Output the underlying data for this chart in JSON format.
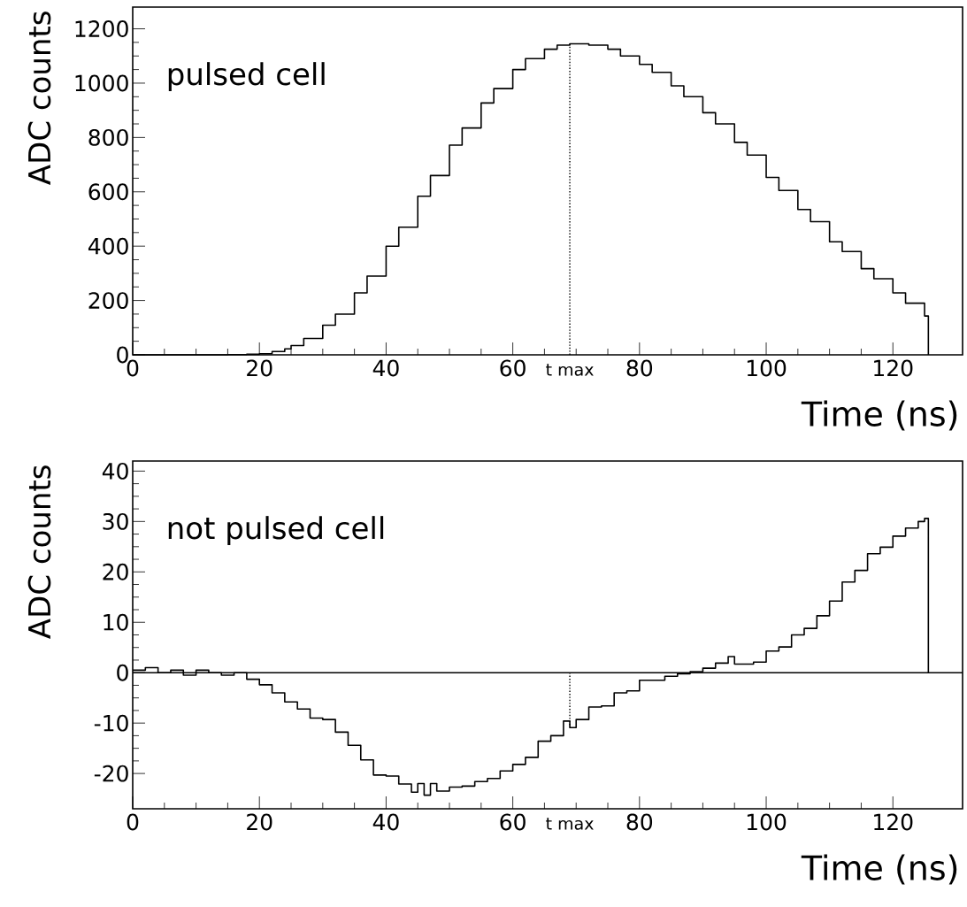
{
  "chart_data": [
    {
      "type": "step",
      "xlabel": "Time (ns)",
      "ylabel": "ADC counts",
      "annotations": [
        "pulsed cell"
      ],
      "x": [
        0,
        5,
        10,
        15,
        18,
        20,
        22,
        24,
        25,
        27,
        30,
        32,
        35,
        37,
        40,
        42,
        45,
        47,
        50,
        52,
        55,
        57,
        60,
        62,
        65,
        67,
        69,
        72,
        75,
        77,
        80,
        82,
        85,
        87,
        90,
        92,
        95,
        97,
        100,
        102,
        105,
        107,
        110,
        112,
        115,
        117,
        120,
        122,
        125,
        125.6
      ],
      "values": [
        0,
        0,
        0,
        1,
        2,
        4,
        12,
        22,
        34,
        60,
        109,
        150,
        228,
        290,
        400,
        470,
        584,
        660,
        772,
        835,
        927,
        980,
        1050,
        1090,
        1125,
        1140,
        1145,
        1140,
        1125,
        1100,
        1069,
        1040,
        990,
        950,
        891,
        850,
        782,
        735,
        653,
        605,
        535,
        490,
        416,
        380,
        317,
        280,
        228,
        190,
        143,
        0
      ],
      "color": "#000000",
      "xlim": [
        0,
        131
      ],
      "ylim": [
        0,
        1280
      ],
      "xticks": [
        0,
        20,
        40,
        60,
        80,
        100,
        120
      ],
      "yticks": [
        0,
        200,
        400,
        600,
        800,
        1000,
        1200
      ],
      "ref_lines": [
        {
          "axis": "x",
          "value": 69,
          "label": "t max",
          "line_style": "dotted",
          "color": "#000000"
        }
      ]
    },
    {
      "type": "step",
      "xlabel": "Time (ns)",
      "ylabel": "ADC counts",
      "annotations": [
        "not pulsed cell"
      ],
      "x": [
        0,
        2,
        4,
        6,
        8,
        10,
        12,
        14,
        16,
        18,
        20,
        22,
        24,
        26,
        28,
        30,
        32,
        34,
        36,
        38,
        40,
        42,
        44,
        45,
        46,
        47,
        48,
        50,
        52,
        54,
        56,
        58,
        60,
        62,
        64,
        66,
        68,
        69,
        70,
        72,
        74,
        76,
        78,
        80,
        82,
        84,
        86,
        88,
        90,
        92,
        94,
        95,
        98,
        100,
        102,
        104,
        106,
        108,
        110,
        112,
        114,
        116,
        118,
        120,
        122,
        124,
        125,
        125.6
      ],
      "values": [
        0.5,
        1,
        0,
        0.5,
        -0.5,
        0.5,
        0,
        -0.5,
        0,
        -1.3,
        -2.4,
        -4,
        -5.8,
        -7.2,
        -9,
        -9.3,
        -11.8,
        -14.4,
        -17.3,
        -20.3,
        -20.5,
        -22.1,
        -23.7,
        -22,
        -24.3,
        -22,
        -23.5,
        -22.7,
        -22.5,
        -21.6,
        -21,
        -19.5,
        -18.2,
        -16.8,
        -13.6,
        -12.5,
        -9.6,
        -10.9,
        -9.3,
        -6.8,
        -6.6,
        -4,
        -3.6,
        -1.5,
        -1.5,
        -0.7,
        -0.2,
        0.2,
        0.9,
        1.9,
        3.2,
        1.7,
        2.1,
        4.3,
        5.1,
        7.5,
        8.8,
        11.3,
        14.2,
        18,
        20.3,
        23.6,
        24.9,
        27.1,
        28.7,
        30,
        30.6,
        0
      ],
      "color": "#000000",
      "xlim": [
        0,
        131
      ],
      "ylim": [
        -27,
        42
      ],
      "xticks": [
        0,
        20,
        40,
        60,
        80,
        100,
        120
      ],
      "yticks": [
        -20,
        -10,
        0,
        10,
        20,
        30,
        40
      ],
      "ref_lines": [
        {
          "axis": "y",
          "value": 0,
          "line_style": "solid",
          "color": "#000000"
        },
        {
          "axis": "x",
          "value": 69,
          "label": "t max",
          "line_style": "dotted",
          "color": "#000000"
        }
      ]
    }
  ]
}
